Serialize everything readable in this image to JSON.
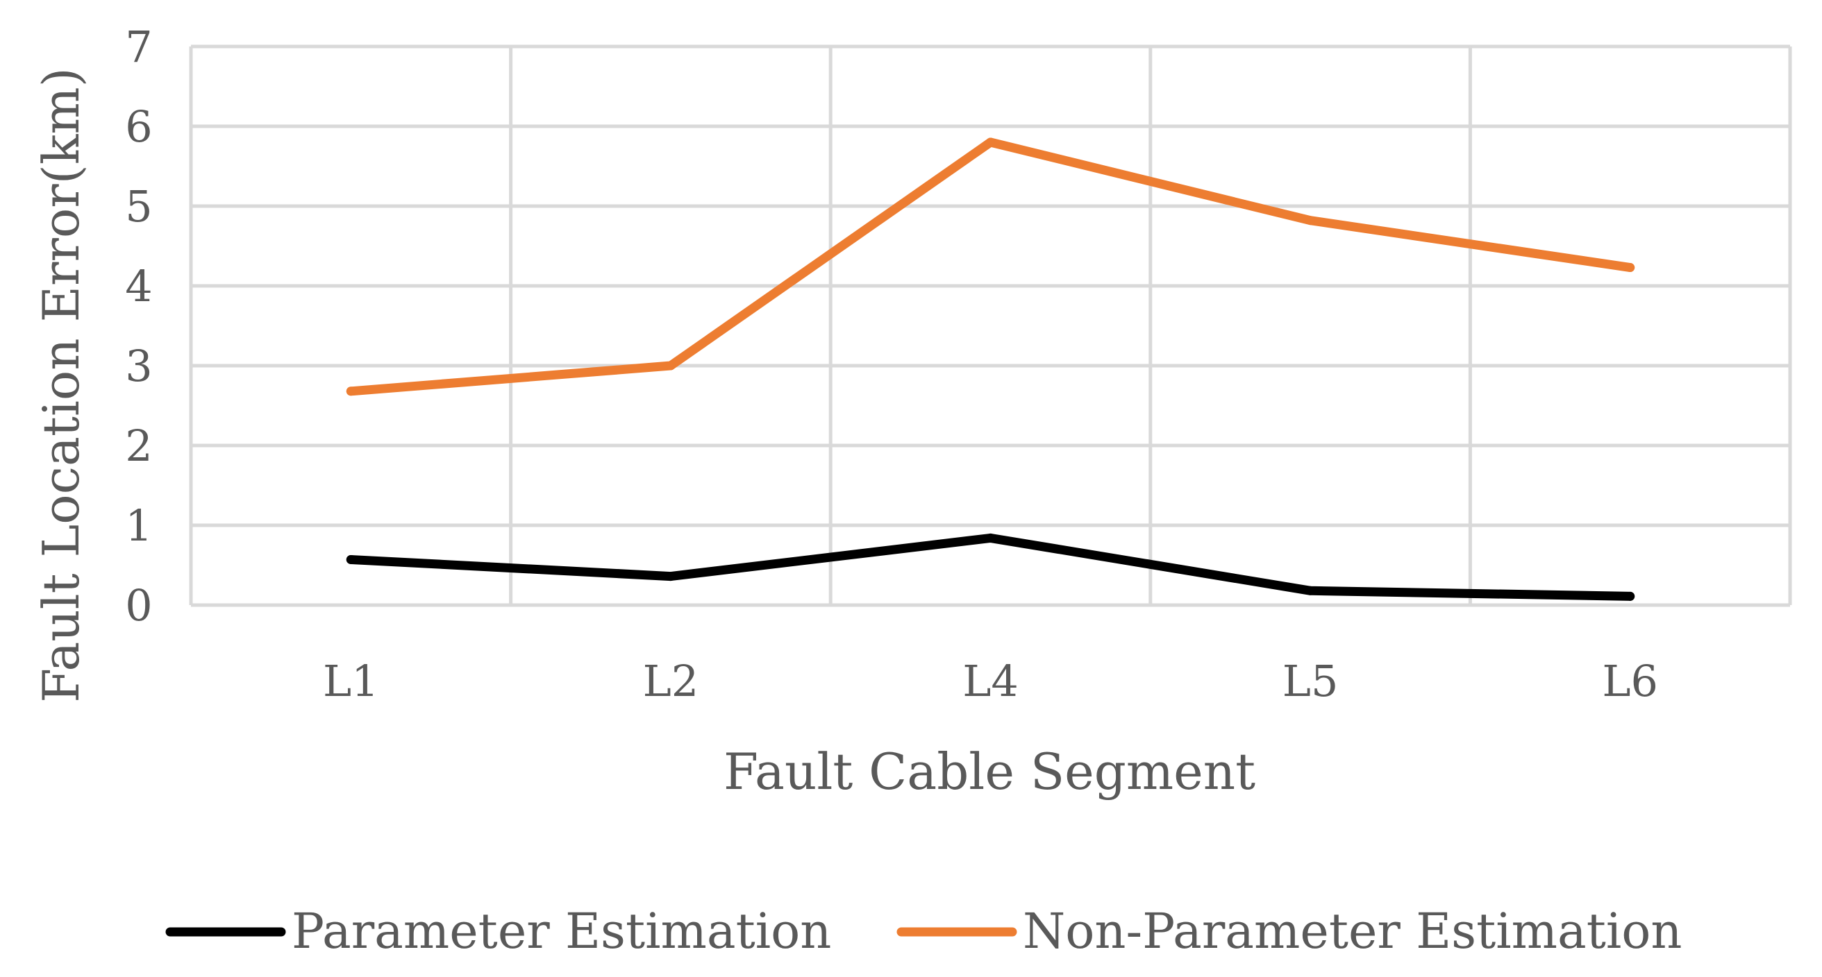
{
  "chart_data": {
    "type": "line",
    "categories": [
      "L1",
      "L2",
      "L4",
      "L5",
      "L6"
    ],
    "series": [
      {
        "name": "Parameter Estimation",
        "color": "#000000",
        "values": [
          0.57,
          0.36,
          0.84,
          0.18,
          0.11
        ]
      },
      {
        "name": "Non-Parameter Estimation",
        "color": "#ED7D31",
        "values": [
          2.68,
          3.0,
          5.8,
          4.82,
          4.23
        ]
      }
    ],
    "title": "",
    "xlabel": "Fault Cable Segment",
    "ylabel": "Fault Location Error(km)",
    "ylim": [
      0,
      7
    ],
    "yticks": [
      "0",
      "1",
      "2",
      "3",
      "4",
      "5",
      "6",
      "7"
    ],
    "grid": true,
    "legend_position": "bottom"
  }
}
